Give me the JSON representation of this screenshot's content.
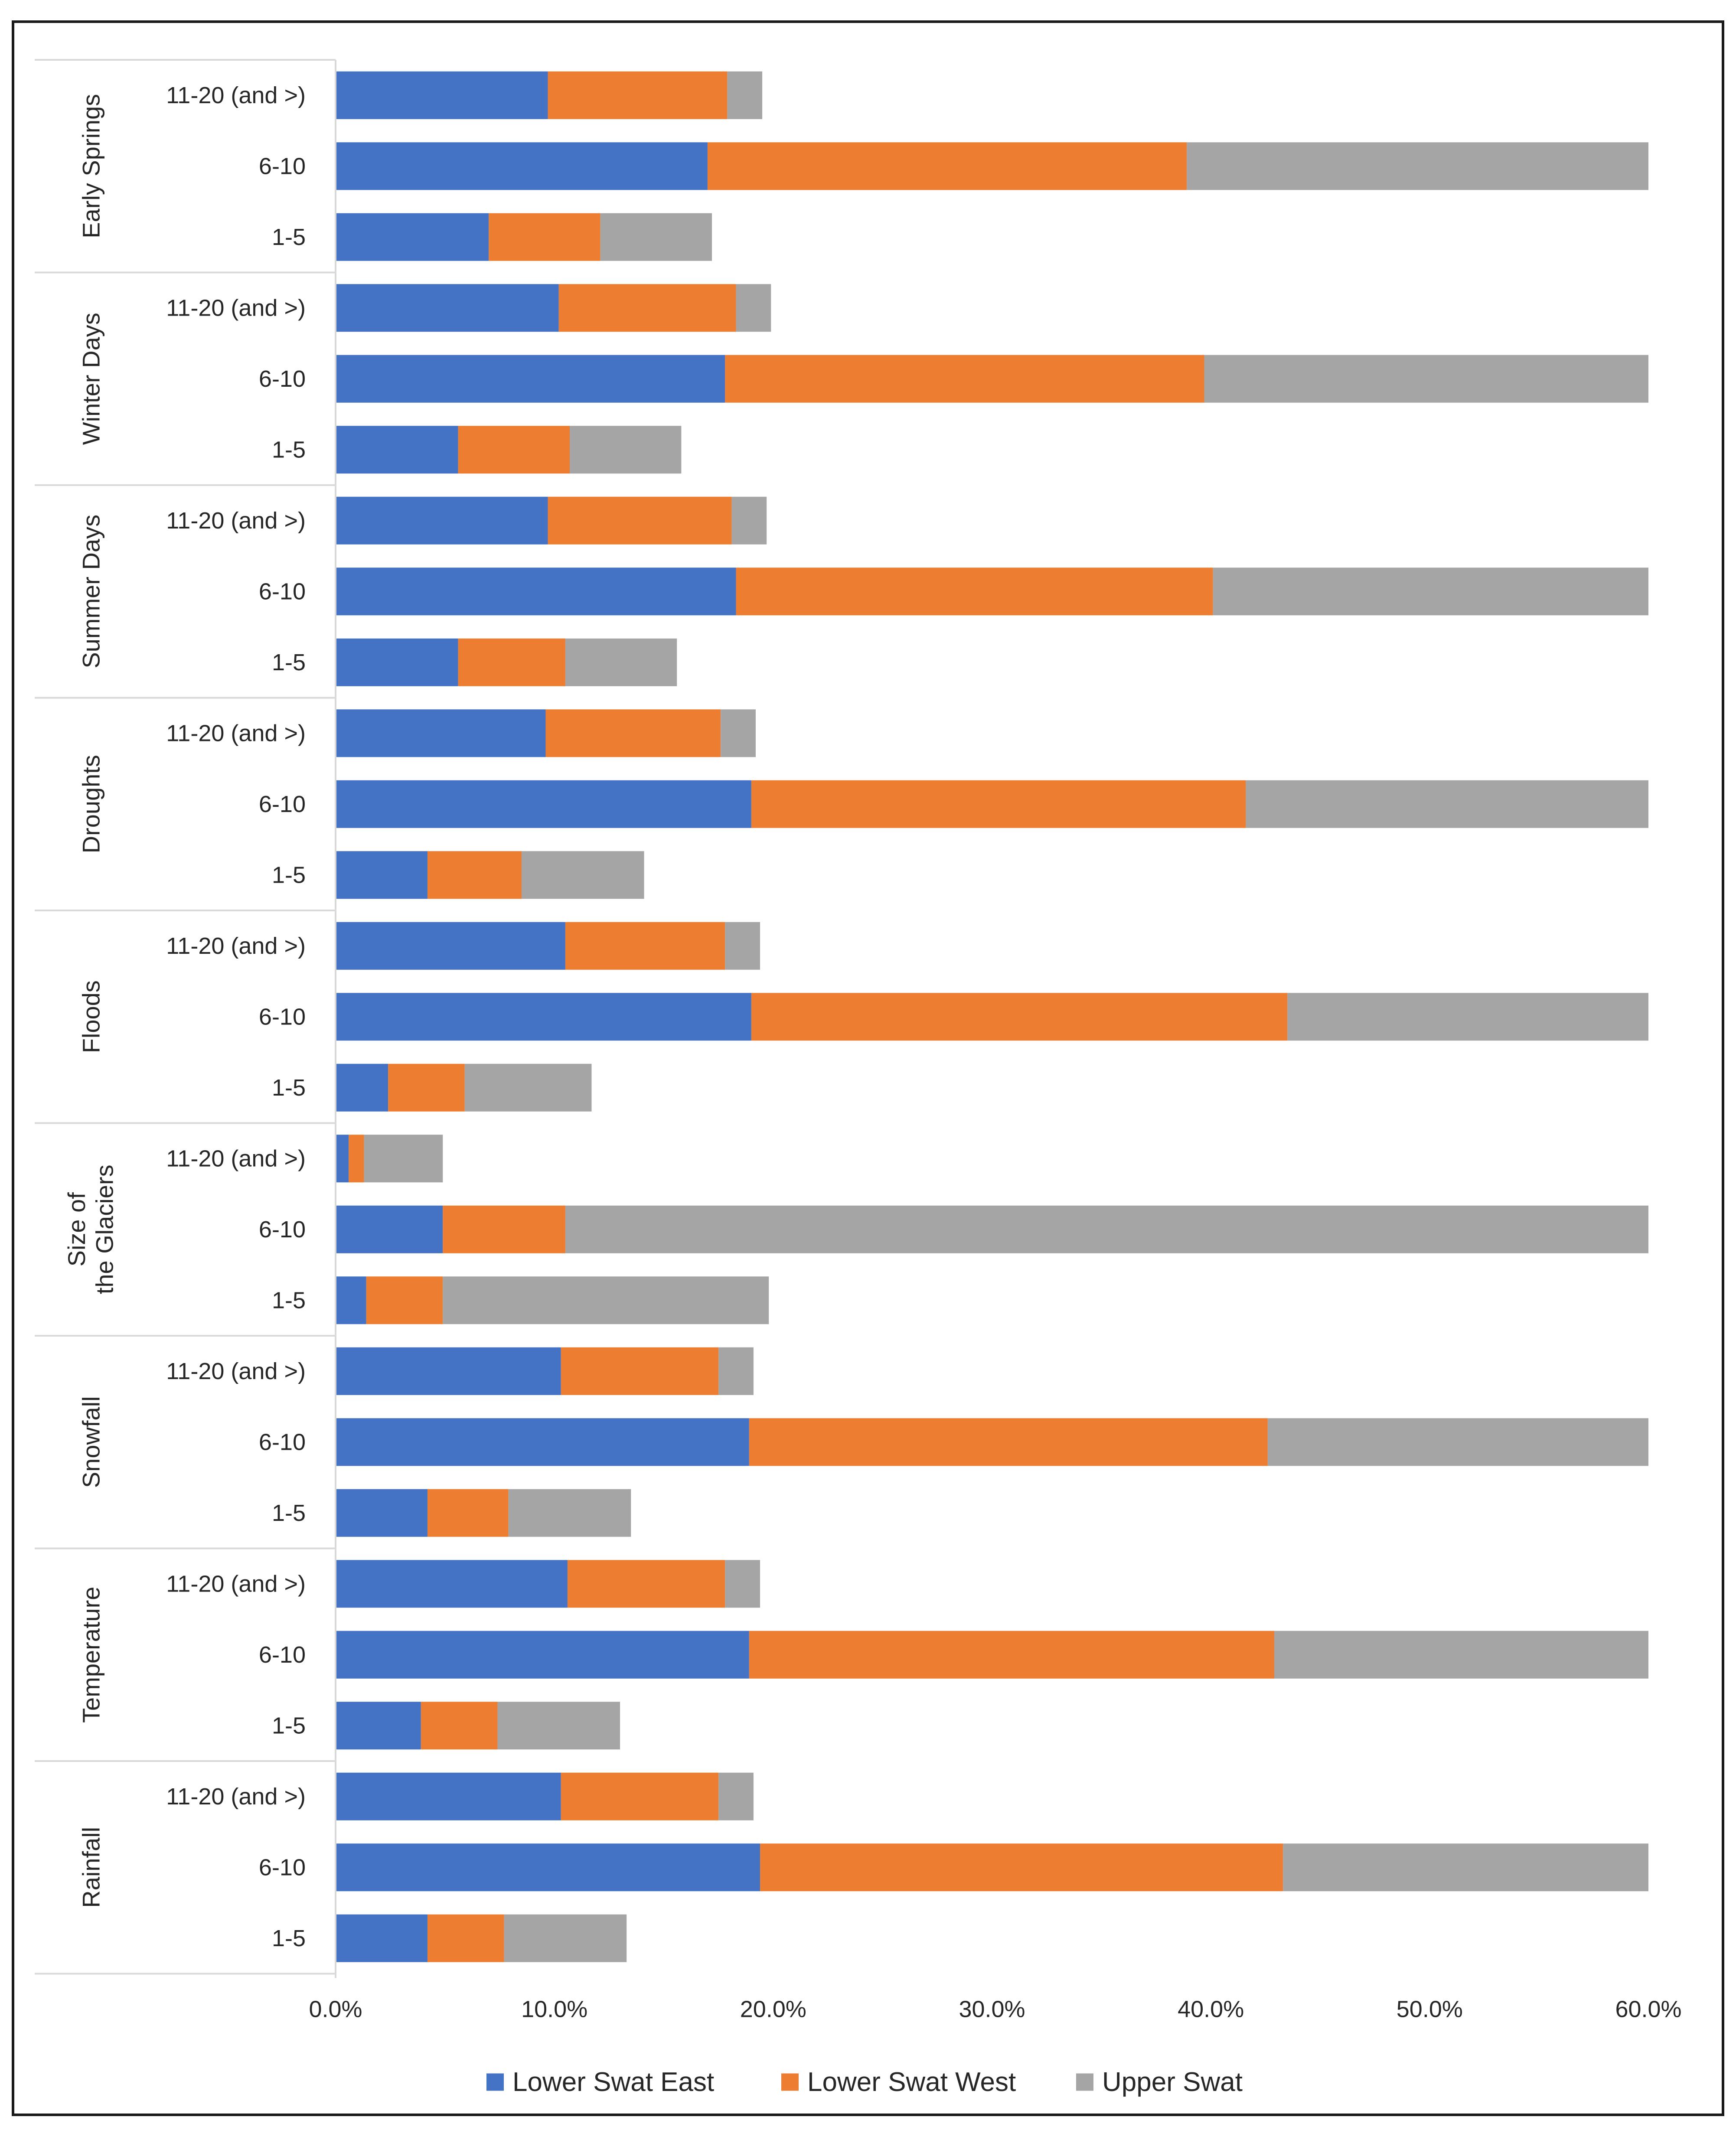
{
  "chart_data": {
    "type": "bar",
    "orientation": "horizontal",
    "stacked": true,
    "xlim": [
      0,
      60
    ],
    "x_ticks": [
      0,
      10,
      20,
      30,
      40,
      50,
      60
    ],
    "x_tick_labels": [
      "0.0%",
      "10.0%",
      "20.0%",
      "30.0%",
      "40.0%",
      "50.0%",
      "60.0%"
    ],
    "legend_position": "bottom",
    "colors": {
      "Lower Swat East": "#4472c4",
      "Lower Swat West": "#ed7d31",
      "Upper Swat": "#a5a5a5"
    },
    "series_names": [
      "Lower Swat East",
      "Lower Swat West",
      "Upper Swat"
    ],
    "groups": [
      {
        "name": "Early Springs",
        "rows": [
          {
            "label": "11-20 (and  >)",
            "values": [
              9.7,
              8.2,
              1.6
            ]
          },
          {
            "label": "6-10",
            "values": [
              17.0,
              21.9,
              21.1
            ]
          },
          {
            "label": "1-5",
            "values": [
              7.0,
              5.1,
              5.1
            ]
          }
        ]
      },
      {
        "name": "Winter Days",
        "rows": [
          {
            "label": "11-20 (and  >)",
            "values": [
              10.2,
              8.1,
              1.6
            ]
          },
          {
            "label": "6-10",
            "values": [
              17.8,
              21.9,
              20.3
            ]
          },
          {
            "label": "1-5",
            "values": [
              5.6,
              5.1,
              5.1
            ]
          }
        ]
      },
      {
        "name": "Summer Days",
        "rows": [
          {
            "label": "11-20 (and  >)",
            "values": [
              9.7,
              8.4,
              1.6
            ]
          },
          {
            "label": "6-10",
            "values": [
              18.3,
              21.8,
              19.9
            ]
          },
          {
            "label": "1-5",
            "values": [
              5.6,
              4.9,
              5.1
            ]
          }
        ]
      },
      {
        "name": "Droughts",
        "rows": [
          {
            "label": "11-20 (and  >)",
            "values": [
              9.6,
              8.0,
              1.6
            ]
          },
          {
            "label": "6-10",
            "values": [
              19.0,
              22.6,
              18.4
            ]
          },
          {
            "label": "1-5",
            "values": [
              4.2,
              4.3,
              5.6
            ]
          }
        ]
      },
      {
        "name": "Floods",
        "rows": [
          {
            "label": "11-20 (and  >)",
            "values": [
              10.5,
              7.3,
              1.6
            ]
          },
          {
            "label": "6-10",
            "values": [
              19.0,
              24.5,
              16.5
            ]
          },
          {
            "label": "1-5",
            "values": [
              2.4,
              3.5,
              5.8
            ]
          }
        ]
      },
      {
        "name": "Size of the Glaciers",
        "rows": [
          {
            "label": "11-20 (and  >)",
            "values": [
              0.6,
              0.7,
              3.6
            ]
          },
          {
            "label": "6-10",
            "values": [
              4.9,
              5.6,
              49.5
            ]
          },
          {
            "label": "1-5",
            "values": [
              1.4,
              3.5,
              14.9
            ]
          }
        ]
      },
      {
        "name": "Snowfall",
        "rows": [
          {
            "label": "11-20 (and  >)",
            "values": [
              10.3,
              7.2,
              1.6
            ]
          },
          {
            "label": "6-10",
            "values": [
              18.9,
              23.7,
              17.4
            ]
          },
          {
            "label": "1-5",
            "values": [
              4.2,
              3.7,
              5.6
            ]
          }
        ]
      },
      {
        "name": "Temperature",
        "rows": [
          {
            "label": "11-20 (and  >)",
            "values": [
              10.6,
              7.2,
              1.6
            ]
          },
          {
            "label": "6-10",
            "values": [
              18.9,
              24.0,
              17.1
            ]
          },
          {
            "label": "1-5",
            "values": [
              3.9,
              3.5,
              5.6
            ]
          }
        ]
      },
      {
        "name": "Rainfall",
        "rows": [
          {
            "label": "11-20 (and >)",
            "values": [
              10.3,
              7.2,
              1.6
            ]
          },
          {
            "label": "6-10",
            "values": [
              19.4,
              23.9,
              16.7
            ]
          },
          {
            "label": "1-5",
            "values": [
              4.2,
              3.5,
              5.6
            ]
          }
        ]
      }
    ]
  }
}
